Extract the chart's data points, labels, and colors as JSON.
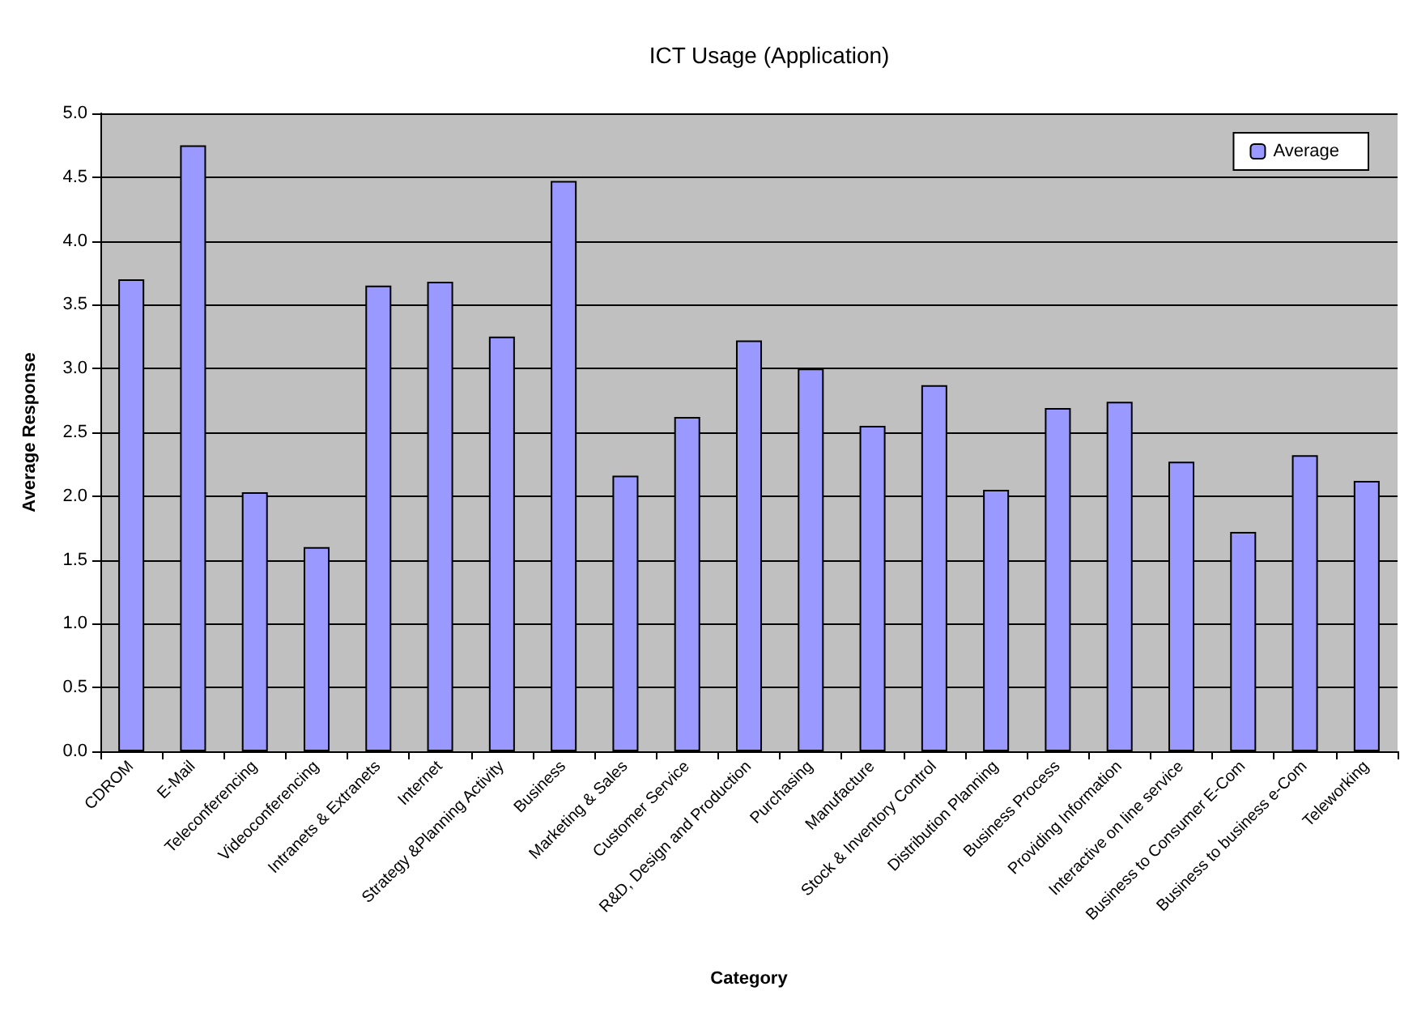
{
  "chart_data": {
    "type": "bar",
    "title": "ICT Usage (Application)",
    "xlabel": "Category",
    "ylabel": "Average Response",
    "categories": [
      "CDROM",
      "E-Mail",
      "Teleconferencing",
      "Videoconferencing",
      "Intranets & Extranets",
      "Internet",
      "Strategy &Planning Activity",
      "Business",
      "Marketing & Sales",
      "Customer Service",
      "R&D, Design and Production",
      "Purchasing",
      "Manufacture",
      "Stock & Inventory Control",
      "Distribution Planning",
      "Business Process",
      "Providing Information",
      "Interactive on line service",
      "Business to Consumer E-Com",
      "Business to business e-Com",
      "Teleworking"
    ],
    "series": [
      {
        "name": "Average",
        "color": "#9999ff",
        "values": [
          3.7,
          4.75,
          2.03,
          1.6,
          3.65,
          3.68,
          3.25,
          4.47,
          2.16,
          2.62,
          3.22,
          3.0,
          2.55,
          2.87,
          2.05,
          2.69,
          2.74,
          2.27,
          1.72,
          2.32,
          2.12
        ]
      }
    ],
    "ylim": [
      0,
      5
    ],
    "yticks": [
      {
        "value": 0,
        "label": "0.0"
      },
      {
        "value": 0.5,
        "label": "0.5"
      },
      {
        "value": 1,
        "label": "1.0"
      },
      {
        "value": 1.5,
        "label": "1.5"
      },
      {
        "value": 2,
        "label": "2.0"
      },
      {
        "value": 2.5,
        "label": "2.5"
      },
      {
        "value": 3,
        "label": "3.0"
      },
      {
        "value": 3.5,
        "label": "3.5"
      },
      {
        "value": 4,
        "label": "4.0"
      },
      {
        "value": 4.5,
        "label": "4.5"
      },
      {
        "value": 5,
        "label": "5.0"
      }
    ],
    "grid": "y",
    "legend": "top right"
  }
}
